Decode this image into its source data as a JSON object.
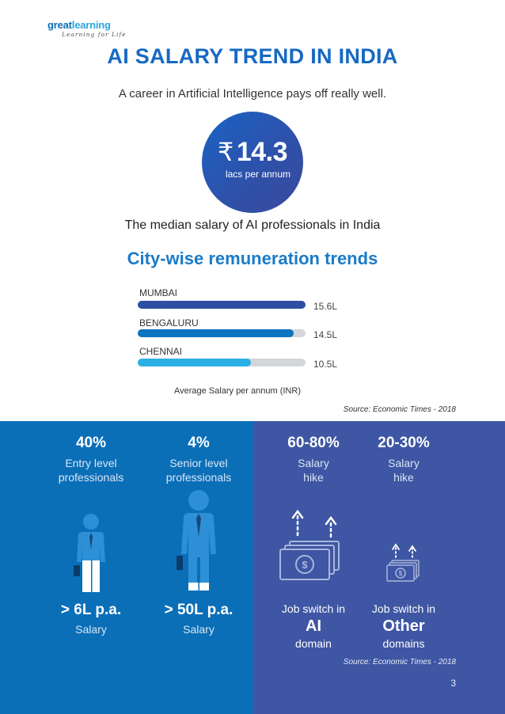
{
  "logo": {
    "brand_part1": "great",
    "brand_part2": "learning",
    "tagline": "Learning for Life"
  },
  "title": "AI SALARY TREND IN INDIA",
  "subtitle": "A career in Artificial Intelligence pays off really well.",
  "median_badge": {
    "currency_symbol": "₹",
    "value": "14.3",
    "unit": "lacs per annum"
  },
  "median_caption": "The median salary of  AI professionals in India",
  "city_section": {
    "title": "City-wise remuneration trends",
    "axis_label": "Average Salary per annum (INR)",
    "source": "Source: Economic Times - 2018"
  },
  "chart_data": {
    "type": "bar",
    "orientation": "horizontal",
    "categories": [
      "MUMBAI",
      "BENGALURU",
      "CHENNAI"
    ],
    "values": [
      15.6,
      14.5,
      10.5
    ],
    "value_labels": [
      "15.6L",
      "14.5L",
      "10.5L"
    ],
    "xlabel": "Average Salary per annum (INR)",
    "xlim": [
      0,
      15.6
    ],
    "colors": [
      "#2d4ea3",
      "#0c73bf",
      "#2bb0e6"
    ]
  },
  "levels": [
    {
      "percent": "40%",
      "line1": "Entry level",
      "line2": "professionals",
      "salary": "> 6L p.a.",
      "salary_caption": "Salary"
    },
    {
      "percent": "4%",
      "line1": "Senior level",
      "line2": "professionals",
      "salary": "> 50L p.a.",
      "salary_caption": "Salary"
    }
  ],
  "hikes": [
    {
      "percent": "60-80%",
      "line1": "Salary",
      "line2": "hike",
      "switch": "Job switch in",
      "domain": "AI",
      "domain_caption": "domain"
    },
    {
      "percent": "20-30%",
      "line1": "Salary",
      "line2": "hike",
      "switch": "Job switch in",
      "domain": "Other",
      "domain_caption": "domains"
    }
  ],
  "bottom_source": "Source: Economic Times - 2018",
  "page_number": "3",
  "colors": {
    "title_blue": "#1769c2",
    "panel_left": "#0b6fb8",
    "panel_right": "#3e56a3",
    "figure_blue": "#2d8fd5"
  }
}
